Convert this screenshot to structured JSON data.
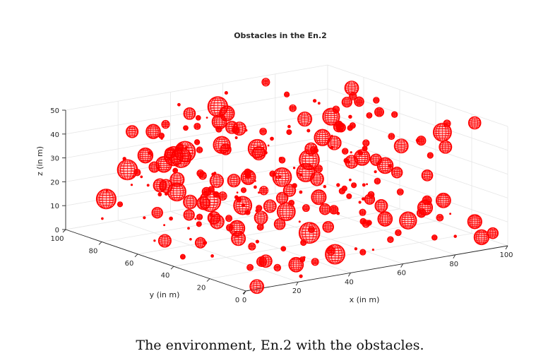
{
  "chart_data": {
    "type": "scatter3d",
    "title": "Obstacles in the En.2",
    "xlabel": "x (in m)",
    "ylabel": "y (in m)",
    "zlabel": "z (in m)",
    "xlim": [
      0,
      100
    ],
    "ylim": [
      0,
      100
    ],
    "zlim": [
      0,
      50
    ],
    "xticks": [
      "0",
      "20",
      "40",
      "60",
      "80",
      "100"
    ],
    "yticks": [
      "0",
      "20",
      "40",
      "60",
      "80",
      "100"
    ],
    "zticks": [
      "0",
      "10",
      "20",
      "30",
      "40",
      "50"
    ],
    "grid": true,
    "marker": "wireframe-sphere",
    "color": "#ff0000",
    "count_shown": 260,
    "radius_range": [
      0.3,
      3.5
    ]
  },
  "caption": "The environment, En.2 with the obstacles."
}
